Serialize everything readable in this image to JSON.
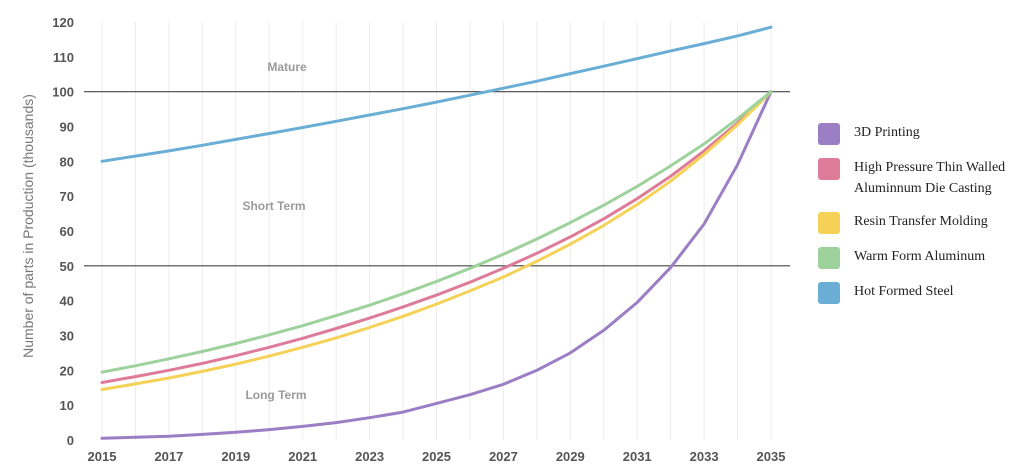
{
  "chart_data": {
    "type": "line",
    "title": "",
    "xlabel": "",
    "ylabel": "Number of parts in Production (thousands)",
    "x": [
      2015,
      2016,
      2017,
      2018,
      2019,
      2020,
      2021,
      2022,
      2023,
      2024,
      2025,
      2026,
      2027,
      2028,
      2029,
      2030,
      2031,
      2032,
      2033,
      2034,
      2035
    ],
    "xticks": [
      "2015",
      "2017",
      "2019",
      "2021",
      "2023",
      "2025",
      "2027",
      "2029",
      "2031",
      "2033",
      "2035"
    ],
    "yticks": [
      "0",
      "10",
      "20",
      "30",
      "40",
      "50",
      "60",
      "70",
      "80",
      "90",
      "100",
      "110",
      "120"
    ],
    "xlim": [
      2015,
      2035
    ],
    "ylim": [
      0,
      120
    ],
    "grid": "vertical",
    "legend_position": "right",
    "reference_lines": [
      50,
      100
    ],
    "zones": [
      "Mature",
      "Short Term",
      "Long Term"
    ],
    "series": [
      {
        "name": "3D Printing",
        "color": "#9b7ec4",
        "values": [
          0.5,
          0.8,
          1.1,
          1.6,
          2.2,
          3.0,
          3.9,
          5.0,
          6.4,
          8.0,
          10.5,
          13.0,
          16.0,
          20.0,
          25.0,
          31.5,
          39.5,
          49.5,
          62.0,
          79.0,
          100.0
        ]
      },
      {
        "name": "High Pressure Thin Walled Aluminnum Die Casting",
        "color": "#de7b98",
        "values": [
          16.5,
          18.2,
          20.0,
          22.0,
          24.2,
          26.6,
          29.2,
          32.0,
          35.0,
          38.2,
          41.6,
          45.3,
          49.3,
          53.6,
          58.3,
          63.5,
          69.3,
          75.7,
          83.0,
          91.0,
          100.0
        ]
      },
      {
        "name": "Resin Transfer Molding",
        "color": "#f5d257",
        "values": [
          14.5,
          16.1,
          17.8,
          19.7,
          21.8,
          24.1,
          26.6,
          29.3,
          32.3,
          35.5,
          39.0,
          42.8,
          46.8,
          51.3,
          56.2,
          61.6,
          67.6,
          74.3,
          82.0,
          90.5,
          100.0
        ]
      },
      {
        "name": "Warm Form Aluminum",
        "color": "#9ed29c",
        "values": [
          19.5,
          21.3,
          23.3,
          25.4,
          27.7,
          30.2,
          32.8,
          35.7,
          38.7,
          42.0,
          45.5,
          49.3,
          53.3,
          57.7,
          62.4,
          67.4,
          72.8,
          78.7,
          85.0,
          92.2,
          100.0
        ]
      },
      {
        "name": "Hot Formed Steel",
        "color": "#6aaed6",
        "values": [
          80.0,
          81.5,
          83.0,
          84.6,
          86.3,
          88.0,
          89.7,
          91.5,
          93.3,
          95.1,
          97.0,
          99.0,
          101.0,
          103.0,
          105.2,
          107.3,
          109.5,
          111.7,
          113.8,
          116.0,
          118.5
        ]
      }
    ]
  }
}
